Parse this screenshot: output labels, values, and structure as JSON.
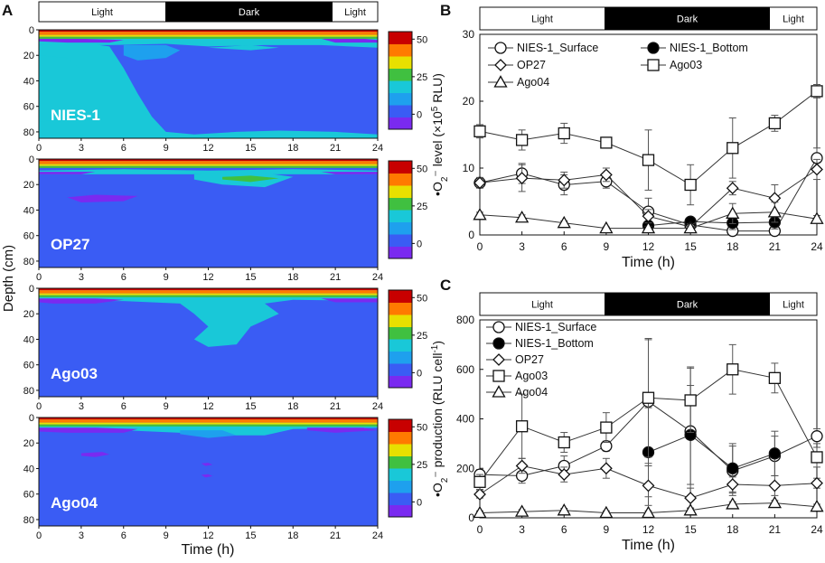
{
  "figure": {
    "panel_labels": [
      "A",
      "B",
      "C"
    ],
    "lightbar": {
      "light_label": "Light",
      "dark_label": "Dark"
    },
    "colors": {
      "rust_red": "#c80000",
      "orange": "#ff7a00",
      "yellow": "#e8e000",
      "green": "#40c040",
      "cyan": "#19c8d8",
      "sky": "#1ea0ee",
      "blue": "#3a5cf4",
      "purple": "#7a2af0",
      "ink": "#222222"
    }
  },
  "chart_data": [
    {
      "id": "A",
      "type": "heatmap",
      "xlabel": "Time (h)",
      "ylabel": "Depth (cm)",
      "x_ticks": [
        "0",
        "3",
        "6",
        "9",
        "12",
        "15",
        "18",
        "21",
        "24"
      ],
      "y_ticks": [
        "0",
        "20",
        "40",
        "60",
        "80"
      ],
      "colorbar_ticks": [
        "50",
        "25",
        "0"
      ],
      "xlim": [
        0,
        24
      ],
      "ylim": [
        85,
        0
      ],
      "colorbar_range": [
        -10,
        55
      ],
      "subplots": [
        {
          "name": "NIES-1"
        },
        {
          "name": "OP27"
        },
        {
          "name": "Ago03"
        },
        {
          "name": "Ago04"
        }
      ]
    },
    {
      "id": "B",
      "type": "line",
      "xlabel": "Time (h)",
      "ylabel_parts": [
        "•O",
        "2",
        "⁻ level (×10",
        "5",
        " RLU)"
      ],
      "x": [
        0,
        3,
        6,
        9,
        12,
        15,
        18,
        21,
        24
      ],
      "x_ticks": [
        "0",
        "3",
        "6",
        "9",
        "12",
        "15",
        "18",
        "21",
        "24"
      ],
      "y_ticks": [
        "0",
        "10",
        "20",
        "30"
      ],
      "xlim": [
        0,
        24
      ],
      "ylim": [
        0,
        30
      ],
      "series": [
        {
          "name": "NIES-1_Surface",
          "marker": "circle-open",
          "values": [
            7.8,
            9.2,
            7.5,
            8.0,
            3.5,
            1.5,
            0.6,
            0.6,
            11.5
          ],
          "err": [
            0.6,
            1.5,
            1.5,
            1.0,
            2.0,
            0.8,
            0.3,
            0.3,
            1.5
          ]
        },
        {
          "name": "NIES-1_Bottom",
          "marker": "circle-filled",
          "values": [
            null,
            null,
            null,
            null,
            1.4,
            2.0,
            1.8,
            1.9,
            null
          ],
          "err": [
            0,
            0,
            0,
            0,
            0.3,
            0.4,
            1.0,
            1.0,
            0
          ]
        },
        {
          "name": "OP27",
          "marker": "diamond-open",
          "values": [
            7.8,
            8.5,
            8.2,
            9.0,
            2.8,
            1.2,
            7.0,
            5.5,
            9.8
          ],
          "err": [
            0.8,
            2.0,
            1.2,
            1.0,
            1.0,
            0.5,
            1.0,
            2.0,
            1.5
          ]
        },
        {
          "name": "Ago03",
          "marker": "square-open",
          "values": [
            15.5,
            14.2,
            15.2,
            13.8,
            11.2,
            7.5,
            13.0,
            16.7,
            21.5
          ],
          "err": [
            1.0,
            1.5,
            1.5,
            0.5,
            4.5,
            3.0,
            4.5,
            1.2,
            1.0
          ]
        },
        {
          "name": "Ago04",
          "marker": "triangle-open",
          "values": [
            3.0,
            2.6,
            1.8,
            1.0,
            1.0,
            1.0,
            3.2,
            3.4,
            2.4
          ],
          "err": [
            0.4,
            0.4,
            0.3,
            0.2,
            0.3,
            0.3,
            1.5,
            1.5,
            0.5
          ]
        }
      ]
    },
    {
      "id": "C",
      "type": "line",
      "xlabel": "Time (h)",
      "ylabel_parts": [
        "•O",
        "2",
        "⁻ production (RLU cell",
        "-1",
        ")"
      ],
      "x": [
        0,
        3,
        6,
        9,
        12,
        15,
        18,
        21,
        24
      ],
      "x_ticks": [
        "0",
        "3",
        "6",
        "9",
        "12",
        "15",
        "18",
        "21",
        "24"
      ],
      "y_ticks": [
        "0",
        "200",
        "400",
        "600",
        "800"
      ],
      "xlim": [
        0,
        24
      ],
      "ylim": [
        0,
        800
      ],
      "series": [
        {
          "name": "NIES-1_Surface",
          "marker": "circle-open",
          "values": [
            175,
            170,
            210,
            290,
            470,
            350,
            190,
            250,
            330
          ],
          "err": [
            20,
            30,
            40,
            20,
            250,
            260,
            100,
            80,
            30
          ]
        },
        {
          "name": "NIES-1_Bottom",
          "marker": "circle-filled",
          "values": [
            null,
            null,
            null,
            null,
            265,
            335,
            200,
            260,
            null
          ],
          "err": [
            0,
            0,
            0,
            0,
            180,
            200,
            100,
            90,
            0
          ]
        },
        {
          "name": "OP27",
          "marker": "diamond-open",
          "values": [
            95,
            210,
            175,
            200,
            130,
            80,
            135,
            130,
            140
          ],
          "err": [
            15,
            30,
            30,
            40,
            80,
            40,
            30,
            40,
            20
          ]
        },
        {
          "name": "Ago03",
          "marker": "square-open",
          "values": [
            145,
            370,
            305,
            365,
            485,
            475,
            600,
            565,
            245
          ],
          "err": [
            30,
            130,
            40,
            60,
            240,
            130,
            100,
            60,
            40
          ]
        },
        {
          "name": "Ago04",
          "marker": "triangle-open",
          "values": [
            20,
            25,
            30,
            20,
            20,
            30,
            55,
            60,
            45
          ],
          "err": [
            8,
            8,
            8,
            8,
            8,
            8,
            10,
            10,
            10
          ]
        }
      ]
    }
  ]
}
